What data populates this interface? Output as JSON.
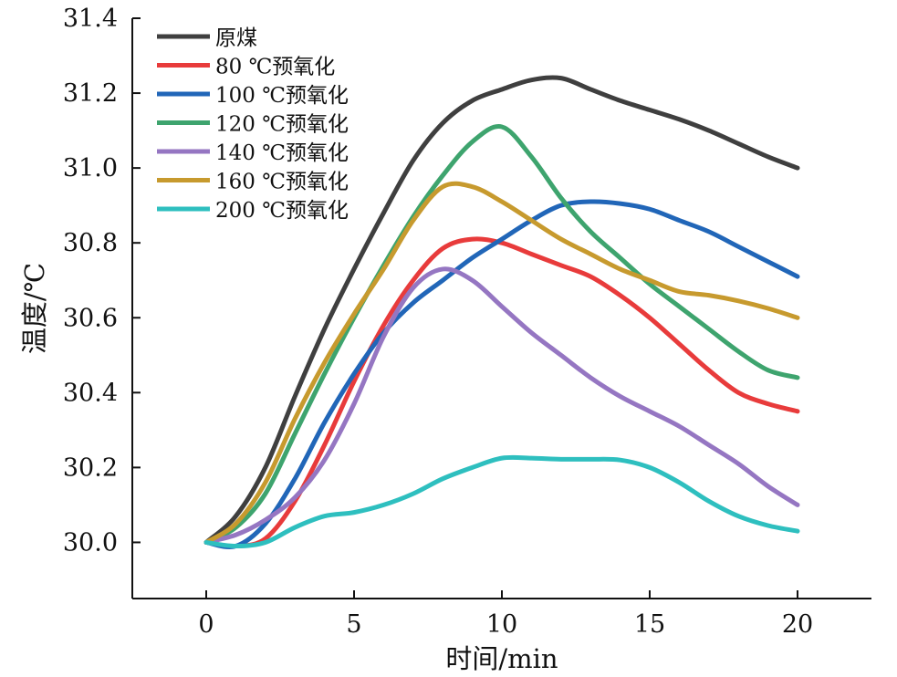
{
  "chart_data": {
    "type": "line",
    "xlabel": "时间/min",
    "ylabel": "温度/℃",
    "xlim": [
      -2.5,
      22.5
    ],
    "ylim": [
      29.85,
      31.4
    ],
    "xticks": [
      0,
      5,
      10,
      15,
      20
    ],
    "xtick_labels": [
      "0",
      "5",
      "10",
      "15",
      "20"
    ],
    "yticks": [
      30.0,
      30.2,
      30.4,
      30.6,
      30.8,
      31.0,
      31.2,
      31.4
    ],
    "ytick_labels": [
      "30.0",
      "30.2",
      "30.4",
      "30.6",
      "30.8",
      "31.0",
      "31.2",
      "31.4"
    ],
    "grid": false,
    "legend_position": "top-left",
    "series": [
      {
        "name": "原煤",
        "color": "#3f3f3f",
        "x": [
          0,
          1,
          2,
          3,
          4,
          5,
          6,
          7,
          8,
          9,
          10,
          11,
          12,
          13,
          14,
          15,
          16,
          17,
          18,
          19,
          20
        ],
        "y": [
          30.0,
          30.07,
          30.2,
          30.39,
          30.57,
          30.73,
          30.88,
          31.02,
          31.12,
          31.18,
          31.21,
          31.235,
          31.24,
          31.21,
          31.18,
          31.155,
          31.13,
          31.1,
          31.065,
          31.03,
          31.0
        ]
      },
      {
        "name": "80 ℃预氧化",
        "color": "#e83b3b",
        "x": [
          0,
          1,
          2,
          3,
          4,
          5,
          6,
          7,
          8,
          9,
          10,
          11,
          12,
          13,
          14,
          15,
          16,
          17,
          18,
          19,
          20
        ],
        "y": [
          30.0,
          29.99,
          30.01,
          30.11,
          30.26,
          30.43,
          30.58,
          30.7,
          30.785,
          30.81,
          30.8,
          30.77,
          30.74,
          30.71,
          30.66,
          30.6,
          30.53,
          30.46,
          30.4,
          30.37,
          30.35
        ]
      },
      {
        "name": "100 ℃预氧化",
        "color": "#2166b8",
        "x": [
          0,
          1,
          2,
          3,
          4,
          5,
          6,
          7,
          8,
          9,
          10,
          11,
          12,
          13,
          14,
          15,
          16,
          17,
          18,
          19,
          20
        ],
        "y": [
          30.0,
          29.99,
          30.05,
          30.17,
          30.32,
          30.45,
          30.56,
          30.64,
          30.7,
          30.76,
          30.81,
          30.86,
          30.9,
          30.91,
          30.905,
          30.89,
          30.86,
          30.83,
          30.79,
          30.75,
          30.71
        ]
      },
      {
        "name": "120 ℃预氧化",
        "color": "#3ea46e",
        "x": [
          0,
          1,
          2,
          3,
          4,
          5,
          6,
          7,
          8,
          9,
          10,
          11,
          12,
          13,
          14,
          15,
          16,
          17,
          18,
          19,
          20
        ],
        "y": [
          30.0,
          30.04,
          30.13,
          30.29,
          30.45,
          30.6,
          30.74,
          30.87,
          30.98,
          31.07,
          31.11,
          31.03,
          30.92,
          30.83,
          30.76,
          30.69,
          30.63,
          30.57,
          30.51,
          30.46,
          30.44
        ]
      },
      {
        "name": "140 ℃预氧化",
        "color": "#9576c2",
        "x": [
          0,
          1,
          2,
          3,
          4,
          5,
          6,
          7,
          8,
          9,
          10,
          11,
          12,
          13,
          14,
          15,
          16,
          17,
          18,
          19,
          20
        ],
        "y": [
          30.0,
          30.02,
          30.06,
          30.12,
          30.22,
          30.37,
          30.55,
          30.68,
          30.73,
          30.7,
          30.63,
          30.56,
          30.5,
          30.44,
          30.39,
          30.35,
          30.31,
          30.26,
          30.21,
          30.15,
          30.1
        ]
      },
      {
        "name": "160 ℃预氧化",
        "color": "#c79a2e",
        "x": [
          0,
          1,
          2,
          3,
          4,
          5,
          6,
          7,
          8,
          9,
          10,
          11,
          12,
          13,
          14,
          15,
          16,
          17,
          18,
          19,
          20
        ],
        "y": [
          30.0,
          30.05,
          30.16,
          30.33,
          30.48,
          30.61,
          30.73,
          30.86,
          30.95,
          30.95,
          30.91,
          30.86,
          30.81,
          30.77,
          30.73,
          30.7,
          30.67,
          30.66,
          30.645,
          30.625,
          30.6
        ]
      },
      {
        "name": "200 ℃预氧化",
        "color": "#2ebfbf",
        "x": [
          0,
          1,
          2,
          3,
          4,
          5,
          6,
          7,
          8,
          9,
          10,
          11,
          12,
          13,
          14,
          15,
          16,
          17,
          18,
          19,
          20
        ],
        "y": [
          30.0,
          29.99,
          30.0,
          30.04,
          30.07,
          30.08,
          30.1,
          30.13,
          30.17,
          30.2,
          30.225,
          30.225,
          30.222,
          30.222,
          30.22,
          30.2,
          30.16,
          30.11,
          30.07,
          30.045,
          30.03
        ]
      }
    ]
  }
}
